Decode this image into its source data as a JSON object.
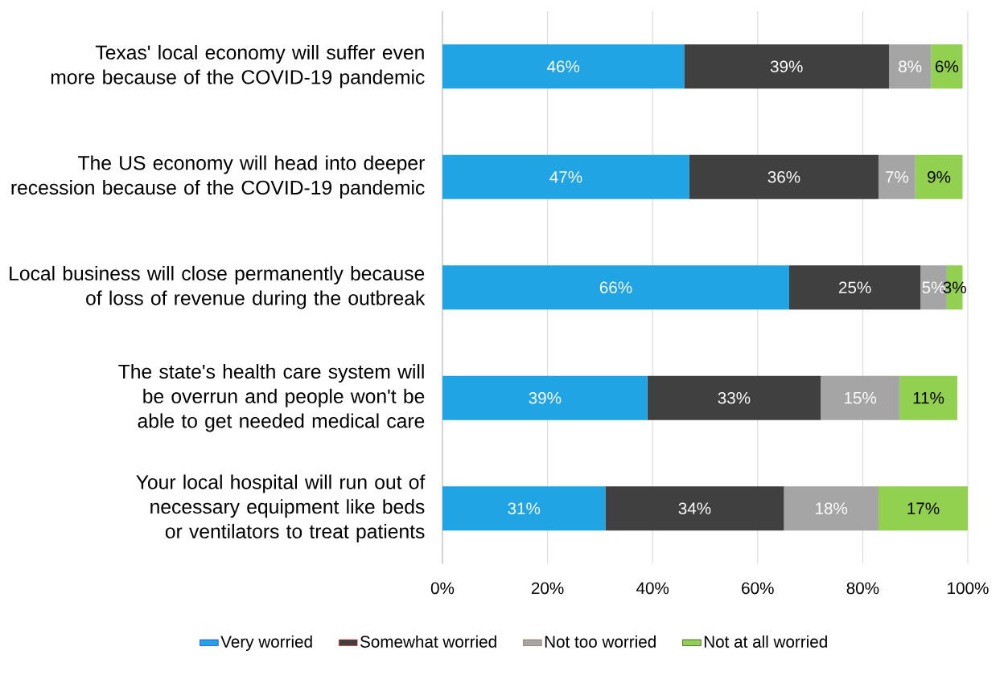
{
  "chart_data": {
    "type": "bar",
    "orientation": "horizontal",
    "stacked": true,
    "categories": [
      "Texas' local economy will suffer even more because of the COVID-19 pandemic",
      "The US economy will head into deeper recession because of the COVID-19 pandemic",
      "Local business will close permanently because of loss of revenue during the outbreak",
      "The state's health care system will be overrun and people won't be able to get needed medical care",
      "Your local hospital will run out of necessary equipment like beds or ventilators to treat patients"
    ],
    "series": [
      {
        "name": "Very worried",
        "color": "#21a4e4",
        "values": [
          46,
          47,
          66,
          39,
          31
        ],
        "value_labels": [
          "46%",
          "47%",
          "66%",
          "39%",
          "31%"
        ]
      },
      {
        "name": "Somewhat worried",
        "color": "#404040",
        "values": [
          39,
          36,
          25,
          33,
          34
        ],
        "value_labels": [
          "39%",
          "36%",
          "25%",
          "33%",
          "34%"
        ]
      },
      {
        "name": "Not too worried",
        "color": "#a5a5a5",
        "values": [
          8,
          7,
          5,
          15,
          18
        ],
        "value_labels": [
          "8%",
          "7%",
          "5%",
          "15%",
          "18%"
        ]
      },
      {
        "name": "Not at all worried",
        "color": "#92d050",
        "values": [
          6,
          9,
          3,
          11,
          17
        ],
        "value_labels": [
          "6%",
          "9%",
          "3%",
          "11%",
          "17%"
        ]
      }
    ],
    "xlim": [
      0,
      100
    ],
    "xticks": [
      {
        "value": 0,
        "label": "0%"
      },
      {
        "value": 20,
        "label": "20%"
      },
      {
        "value": 40,
        "label": "40%"
      },
      {
        "value": 60,
        "label": "60%"
      },
      {
        "value": 80,
        "label": "80%"
      },
      {
        "value": 100,
        "label": "100%"
      }
    ],
    "grid": "x",
    "legend": "bottom"
  }
}
